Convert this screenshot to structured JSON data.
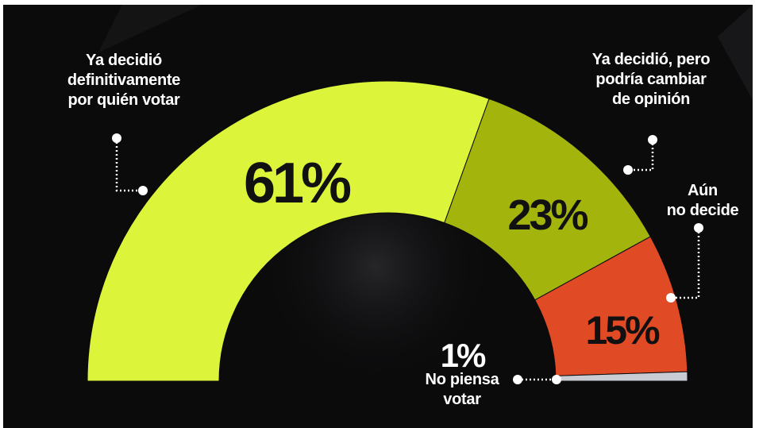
{
  "colors": {
    "background": "#0b0b0c",
    "decided": "#dcf53b",
    "may_change": "#a3b40c",
    "undecided": "#e04a24",
    "wont_vote": "#c9ccd2",
    "text_dark": "#111111",
    "text_light": "#ffffff"
  },
  "chart_data": {
    "type": "pie",
    "shape": "half-donut",
    "title": "",
    "slices": [
      {
        "label_lines": [
          "Ya decidió",
          "definitivamente",
          "por quién votar"
        ],
        "value": 61,
        "display": "61%",
        "color": "#dcf53b"
      },
      {
        "label_lines": [
          "Ya decidió, pero",
          "podría cambiar",
          "de opinión"
        ],
        "value": 23,
        "display": "23%",
        "color": "#a3b40c"
      },
      {
        "label_lines": [
          "Aún",
          "no decide"
        ],
        "value": 15,
        "display": "15%",
        "color": "#e04a24"
      },
      {
        "label_lines": [
          "No piensa",
          "votar"
        ],
        "value": 1,
        "display": "1%",
        "color": "#c9ccd2"
      }
    ]
  }
}
